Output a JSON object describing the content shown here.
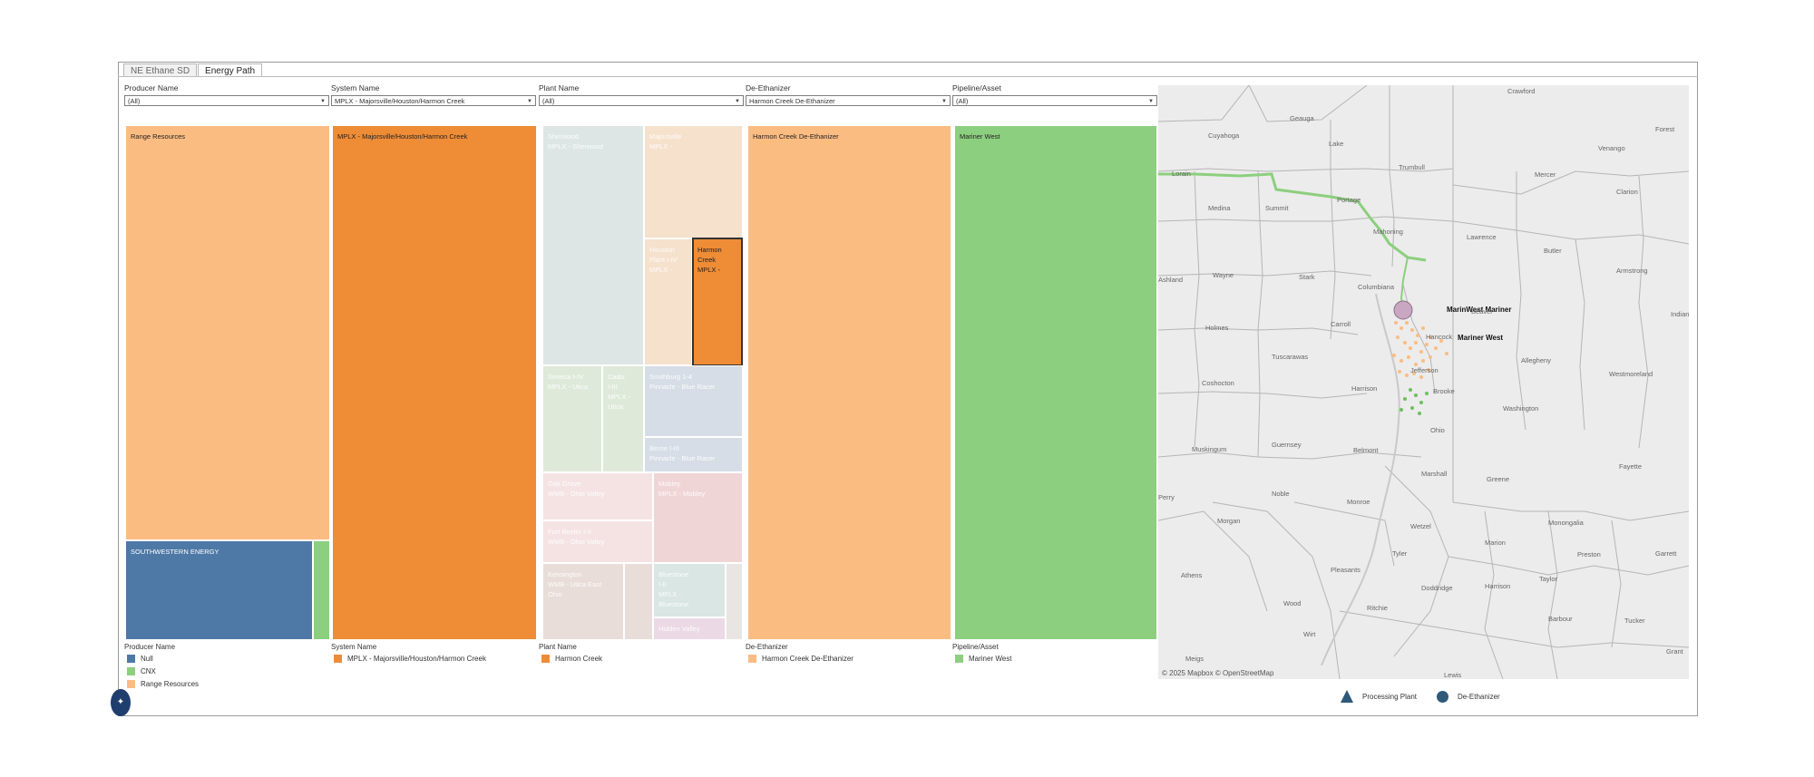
{
  "tabs": [
    {
      "label": "NE Ethane SD",
      "active": false
    },
    {
      "label": "Energy Path",
      "active": true
    }
  ],
  "filters": [
    {
      "label": "Producer Name",
      "value": "(All)"
    },
    {
      "label": "System Name",
      "value": "MPLX - Majorsville/Houston/Harmon Creek"
    },
    {
      "label": "Plant Name",
      "value": "(All)"
    },
    {
      "label": "De-Ethanizer",
      "value": "Harmon Creek De-Ethanizer"
    },
    {
      "label": "Pipeline/Asset",
      "value": "(All)"
    }
  ],
  "treemap": {
    "producer": {
      "range": "Range Resources",
      "swn": "SOUTHWESTERN ENERGY"
    },
    "system": "MPLX - Majorsville/Houston/Harmon Creek",
    "plants": {
      "sherwood": "Sherwood\nMPLX - Sherwood",
      "majorsville": "Majorsville\nMPLX -",
      "houston": "Houston\nPlant I-IV\nMPLX -",
      "harmon": "Harmon\nCreek\nMPLX -",
      "seneca": "Seneca I-IV\nMPLX - Utica",
      "cadiz": "Cadiz\nI-III\nMPLX -\nUtica",
      "smithburg": "Smithburg 1-4\nPinnacle - Blue Racer",
      "berne": "Berne I-III\nPinnacle - Blue Racer",
      "oakgrove": "Oak Grove\nWMB - Ohio Valley",
      "mobley": "Mobley\nMPLX - Mobley",
      "fortbeeler": "Fort Beeler I-II\nWMB - Ohio Valley",
      "kensington": "Kensington\nWMB - Utica East\nOhio",
      "sherwood2": "Bluestone\nI-II\nMPLX -\nBluestone",
      "other": "Hidden Valley"
    },
    "deethanizer": "Harmon Creek De-Ethanizer",
    "pipeline": "Mariner West"
  },
  "legends": [
    {
      "title": "Producer Name",
      "items": [
        {
          "label": "Null",
          "color": "#4e79a7"
        },
        {
          "label": "CNX",
          "color": "#8ccf7e"
        },
        {
          "label": "Range Resources",
          "color": "#fbbc82"
        }
      ]
    },
    {
      "title": "System Name",
      "items": [
        {
          "label": "MPLX - Majorsville/Houston/Harmon Creek",
          "color": "#ef8c36"
        }
      ]
    },
    {
      "title": "Plant Name",
      "items": [
        {
          "label": "Harmon Creek",
          "color": "#ef8c36"
        }
      ]
    },
    {
      "title": "De-Ethanizer",
      "items": [
        {
          "label": "Harmon Creek De-Ethanizer",
          "color": "#fbbc82"
        }
      ]
    },
    {
      "title": "Pipeline/Asset",
      "items": [
        {
          "label": "Mariner West",
          "color": "#8ccf7e"
        }
      ]
    }
  ],
  "map": {
    "counties": [
      "Crawford",
      "Geauga",
      "Cuyahoga",
      "Lake",
      "Venango",
      "Forest",
      "Lorain",
      "Trumbull",
      "Mercer",
      "Clarion",
      "Medina",
      "Summit",
      "Portage",
      "Mahoning",
      "Lawrence",
      "Butler",
      "Armstrong",
      "Wayne",
      "Stark",
      "Columbiana",
      "Beaver",
      "Indiana",
      "Holmes",
      "Carroll",
      "Hancock",
      "Allegheny",
      "Westmoreland",
      "Coshocton",
      "Tuscarawas",
      "Jefferson",
      "Harrison",
      "Brooke",
      "Washington",
      "Muskingum",
      "Guernsey",
      "Belmont",
      "Ohio",
      "Marshall",
      "Greene",
      "Fayette",
      "Perry",
      "Noble",
      "Monroe",
      "Morgan",
      "Wetzel",
      "Monongalia",
      "Marion",
      "Preston",
      "Garrett",
      "Athens",
      "Tyler",
      "Taylor",
      "Pleasants",
      "Doddridge",
      "Harrison",
      "Wood",
      "Ritchie",
      "Barbour",
      "Tucker",
      "Wirt",
      "Lewis",
      "Meigs",
      "Grant",
      "Ashland",
      "Richland"
    ],
    "labels": {
      "mariner1": "MarinWest Mariner",
      "mariner2": "Mariner West"
    },
    "credit": "© 2025 Mapbox © OpenStreetMap"
  },
  "map_legend": {
    "plant": "Processing Plant",
    "deeth": "De-Ethanizer"
  },
  "colors": {
    "range": "#fbbc82",
    "mplx": "#ef8c36",
    "swn": "#4e79a7",
    "cnx": "#8ccf7e",
    "pipeline": "#8ccf7e",
    "route": "#8ccf7e"
  }
}
